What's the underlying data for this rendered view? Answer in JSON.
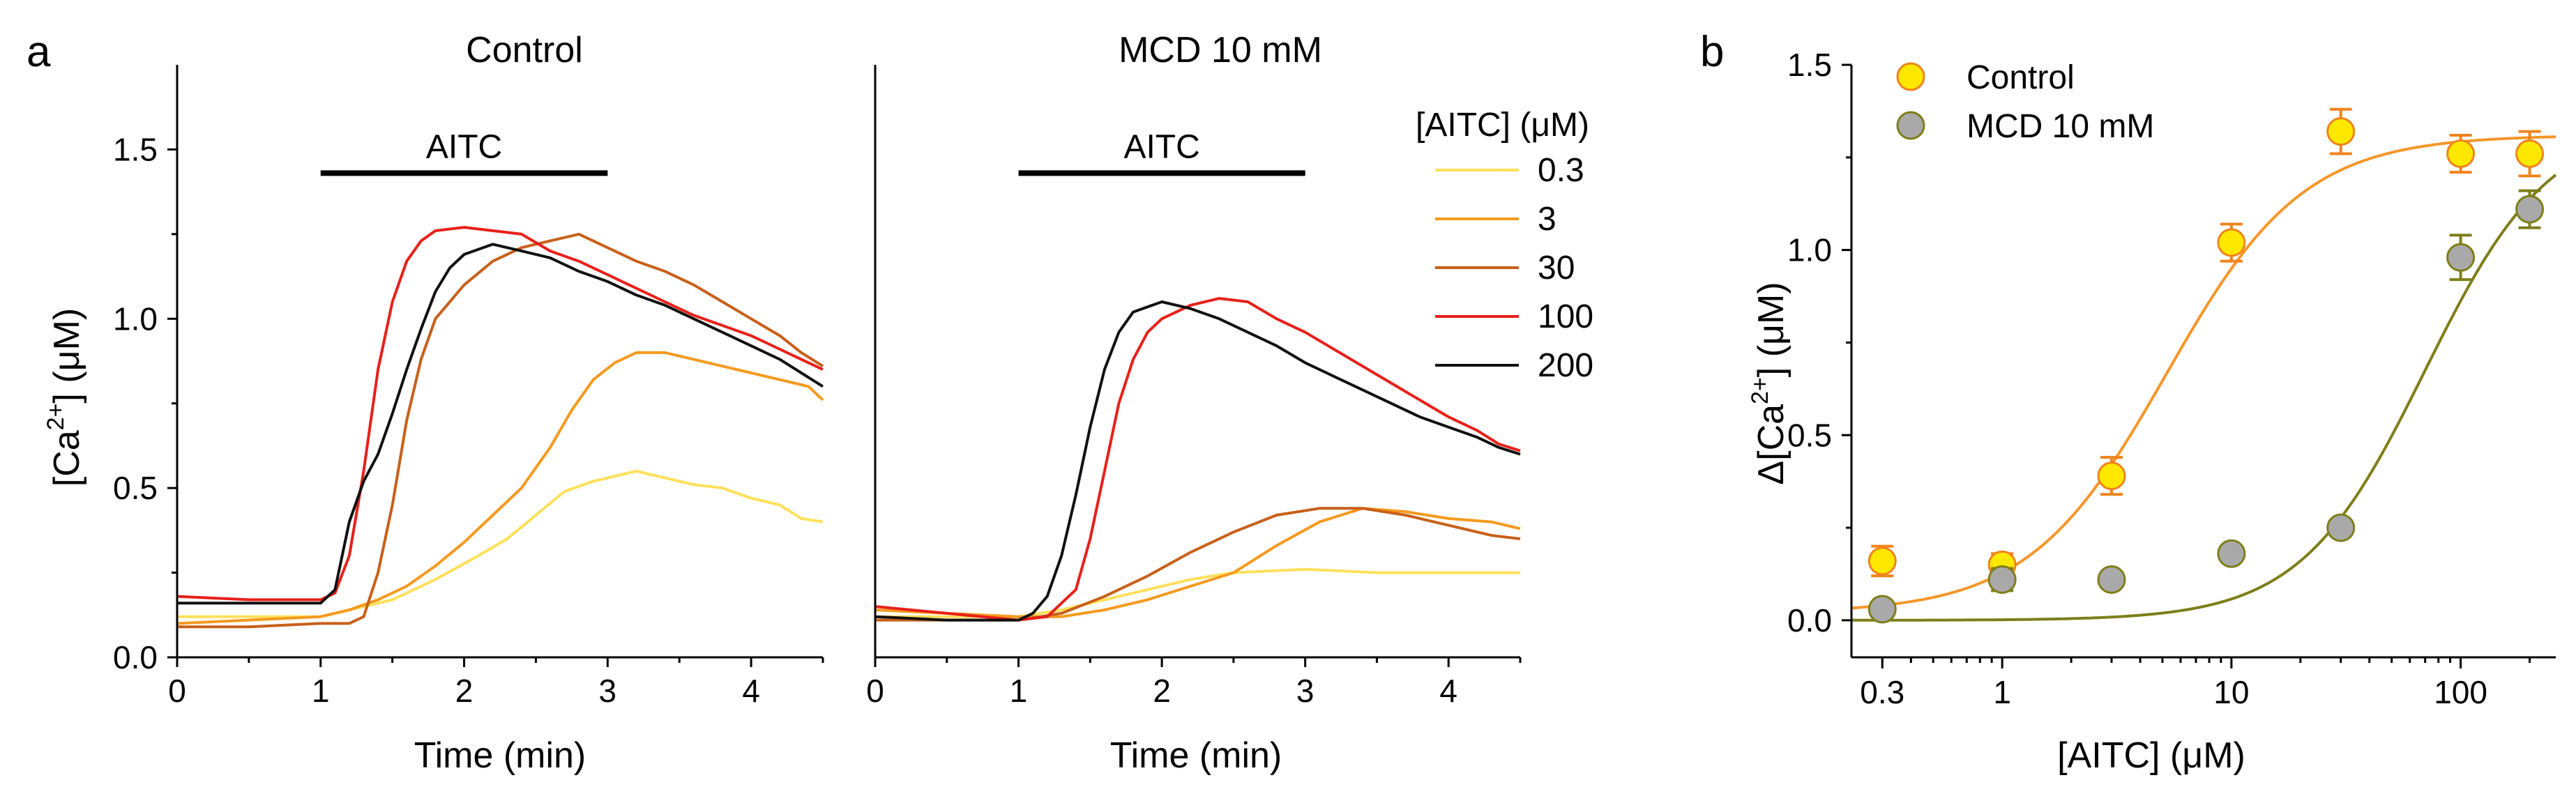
{
  "panel_labels": {
    "a": "a",
    "b": "b"
  },
  "legend_title": "[AITC] (μM)",
  "legend_entries": [
    {
      "label": "0.3",
      "color": "#FFE05A"
    },
    {
      "label": "3",
      "color": "#F59A1E"
    },
    {
      "label": "30",
      "color": "#C8601A"
    },
    {
      "label": "100",
      "color": "#E8201A"
    },
    {
      "label": "200",
      "color": "#111111"
    }
  ],
  "chart_data": [
    {
      "id": "control",
      "type": "line",
      "title": "Control",
      "xlabel": "Time (min)",
      "ylabel_parts": [
        "[Ca",
        "2+",
        "] (μM)"
      ],
      "xlim": [
        0,
        4.5
      ],
      "ylim": [
        0,
        1.75
      ],
      "xticks": [
        0,
        1,
        2,
        3,
        4
      ],
      "yticks": [
        0.0,
        0.5,
        1.0,
        1.5
      ],
      "ytick_labels": [
        "0.0",
        "0.5",
        "1.0",
        "1.5"
      ],
      "annotation": {
        "label": "AITC",
        "start": 1.0,
        "end": 3.0,
        "y": 1.43
      },
      "series": [
        {
          "name": "0.3",
          "color": "#FFE05A",
          "points": [
            [
              0,
              0.12
            ],
            [
              0.5,
              0.12
            ],
            [
              1.0,
              0.12
            ],
            [
              1.2,
              0.14
            ],
            [
              1.5,
              0.17
            ],
            [
              1.8,
              0.23
            ],
            [
              2.1,
              0.3
            ],
            [
              2.3,
              0.35
            ],
            [
              2.5,
              0.42
            ],
            [
              2.7,
              0.49
            ],
            [
              2.9,
              0.52
            ],
            [
              3.1,
              0.54
            ],
            [
              3.2,
              0.55
            ],
            [
              3.4,
              0.53
            ],
            [
              3.6,
              0.51
            ],
            [
              3.8,
              0.5
            ],
            [
              4.0,
              0.47
            ],
            [
              4.2,
              0.45
            ],
            [
              4.35,
              0.41
            ],
            [
              4.5,
              0.4
            ]
          ]
        },
        {
          "name": "3",
          "color": "#F59A1E",
          "points": [
            [
              0,
              0.1
            ],
            [
              0.5,
              0.11
            ],
            [
              1.0,
              0.12
            ],
            [
              1.2,
              0.14
            ],
            [
              1.4,
              0.17
            ],
            [
              1.6,
              0.21
            ],
            [
              1.8,
              0.27
            ],
            [
              2.0,
              0.34
            ],
            [
              2.2,
              0.42
            ],
            [
              2.4,
              0.5
            ],
            [
              2.6,
              0.62
            ],
            [
              2.75,
              0.73
            ],
            [
              2.9,
              0.82
            ],
            [
              3.05,
              0.87
            ],
            [
              3.2,
              0.9
            ],
            [
              3.4,
              0.9
            ],
            [
              3.6,
              0.88
            ],
            [
              3.8,
              0.86
            ],
            [
              4.0,
              0.84
            ],
            [
              4.2,
              0.82
            ],
            [
              4.4,
              0.8
            ],
            [
              4.5,
              0.76
            ]
          ]
        },
        {
          "name": "30",
          "color": "#C8601A",
          "points": [
            [
              0,
              0.09
            ],
            [
              0.5,
              0.09
            ],
            [
              1.0,
              0.1
            ],
            [
              1.2,
              0.1
            ],
            [
              1.3,
              0.12
            ],
            [
              1.4,
              0.25
            ],
            [
              1.5,
              0.45
            ],
            [
              1.6,
              0.7
            ],
            [
              1.7,
              0.88
            ],
            [
              1.8,
              1.0
            ],
            [
              2.0,
              1.1
            ],
            [
              2.2,
              1.17
            ],
            [
              2.4,
              1.21
            ],
            [
              2.6,
              1.23
            ],
            [
              2.8,
              1.25
            ],
            [
              3.0,
              1.21
            ],
            [
              3.2,
              1.17
            ],
            [
              3.4,
              1.14
            ],
            [
              3.6,
              1.1
            ],
            [
              3.8,
              1.05
            ],
            [
              4.0,
              1.0
            ],
            [
              4.2,
              0.95
            ],
            [
              4.35,
              0.9
            ],
            [
              4.5,
              0.86
            ]
          ]
        },
        {
          "name": "100",
          "color": "#E8201A",
          "points": [
            [
              0,
              0.18
            ],
            [
              0.5,
              0.17
            ],
            [
              1.0,
              0.17
            ],
            [
              1.1,
              0.19
            ],
            [
              1.2,
              0.3
            ],
            [
              1.3,
              0.55
            ],
            [
              1.4,
              0.85
            ],
            [
              1.5,
              1.05
            ],
            [
              1.6,
              1.17
            ],
            [
              1.7,
              1.23
            ],
            [
              1.8,
              1.26
            ],
            [
              2.0,
              1.27
            ],
            [
              2.2,
              1.26
            ],
            [
              2.4,
              1.25
            ],
            [
              2.6,
              1.2
            ],
            [
              2.8,
              1.17
            ],
            [
              3.0,
              1.13
            ],
            [
              3.2,
              1.09
            ],
            [
              3.4,
              1.05
            ],
            [
              3.6,
              1.01
            ],
            [
              3.8,
              0.98
            ],
            [
              4.0,
              0.95
            ],
            [
              4.2,
              0.91
            ],
            [
              4.35,
              0.88
            ],
            [
              4.5,
              0.85
            ]
          ]
        },
        {
          "name": "200",
          "color": "#111111",
          "points": [
            [
              0,
              0.16
            ],
            [
              0.5,
              0.16
            ],
            [
              1.0,
              0.16
            ],
            [
              1.1,
              0.2
            ],
            [
              1.2,
              0.4
            ],
            [
              1.3,
              0.52
            ],
            [
              1.4,
              0.6
            ],
            [
              1.5,
              0.72
            ],
            [
              1.6,
              0.85
            ],
            [
              1.7,
              0.97
            ],
            [
              1.8,
              1.08
            ],
            [
              1.9,
              1.15
            ],
            [
              2.0,
              1.19
            ],
            [
              2.2,
              1.22
            ],
            [
              2.4,
              1.2
            ],
            [
              2.6,
              1.18
            ],
            [
              2.8,
              1.14
            ],
            [
              3.0,
              1.11
            ],
            [
              3.2,
              1.07
            ],
            [
              3.4,
              1.04
            ],
            [
              3.6,
              1.0
            ],
            [
              3.8,
              0.96
            ],
            [
              4.0,
              0.92
            ],
            [
              4.2,
              0.88
            ],
            [
              4.35,
              0.84
            ],
            [
              4.5,
              0.8
            ]
          ]
        }
      ]
    },
    {
      "id": "mcd",
      "type": "line",
      "title": "MCD 10 mM",
      "xlabel": "Time (min)",
      "xlim": [
        0,
        4.5
      ],
      "ylim": [
        0,
        1.75
      ],
      "xticks": [
        0,
        1,
        2,
        3,
        4
      ],
      "annotation": {
        "label": "AITC",
        "start": 1.0,
        "end": 3.0,
        "y": 1.43
      },
      "series": [
        {
          "name": "0.3",
          "color": "#FFE05A",
          "points": [
            [
              0,
              0.12
            ],
            [
              0.5,
              0.12
            ],
            [
              1.0,
              0.12
            ],
            [
              1.3,
              0.14
            ],
            [
              1.6,
              0.17
            ],
            [
              1.9,
              0.2
            ],
            [
              2.2,
              0.23
            ],
            [
              2.5,
              0.25
            ],
            [
              3.0,
              0.26
            ],
            [
              3.5,
              0.25
            ],
            [
              4.0,
              0.25
            ],
            [
              4.5,
              0.25
            ]
          ]
        },
        {
          "name": "3",
          "color": "#F59A1E",
          "points": [
            [
              0,
              0.14
            ],
            [
              0.5,
              0.13
            ],
            [
              1.0,
              0.12
            ],
            [
              1.3,
              0.12
            ],
            [
              1.6,
              0.14
            ],
            [
              1.9,
              0.17
            ],
            [
              2.2,
              0.21
            ],
            [
              2.5,
              0.25
            ],
            [
              2.8,
              0.33
            ],
            [
              3.1,
              0.4
            ],
            [
              3.4,
              0.44
            ],
            [
              3.7,
              0.43
            ],
            [
              4.0,
              0.41
            ],
            [
              4.3,
              0.4
            ],
            [
              4.5,
              0.38
            ]
          ]
        },
        {
          "name": "30",
          "color": "#C8601A",
          "points": [
            [
              0,
              0.11
            ],
            [
              0.5,
              0.11
            ],
            [
              1.0,
              0.11
            ],
            [
              1.3,
              0.13
            ],
            [
              1.6,
              0.18
            ],
            [
              1.9,
              0.24
            ],
            [
              2.2,
              0.31
            ],
            [
              2.5,
              0.37
            ],
            [
              2.8,
              0.42
            ],
            [
              3.1,
              0.44
            ],
            [
              3.4,
              0.44
            ],
            [
              3.7,
              0.42
            ],
            [
              4.0,
              0.39
            ],
            [
              4.3,
              0.36
            ],
            [
              4.5,
              0.35
            ]
          ]
        },
        {
          "name": "100",
          "color": "#E8201A",
          "points": [
            [
              0,
              0.15
            ],
            [
              0.5,
              0.13
            ],
            [
              1.0,
              0.11
            ],
            [
              1.2,
              0.12
            ],
            [
              1.4,
              0.2
            ],
            [
              1.5,
              0.35
            ],
            [
              1.6,
              0.55
            ],
            [
              1.7,
              0.75
            ],
            [
              1.8,
              0.88
            ],
            [
              1.9,
              0.96
            ],
            [
              2.0,
              1.0
            ],
            [
              2.2,
              1.04
            ],
            [
              2.4,
              1.06
            ],
            [
              2.6,
              1.05
            ],
            [
              2.8,
              1.0
            ],
            [
              3.0,
              0.96
            ],
            [
              3.2,
              0.91
            ],
            [
              3.4,
              0.86
            ],
            [
              3.6,
              0.81
            ],
            [
              3.8,
              0.76
            ],
            [
              4.0,
              0.71
            ],
            [
              4.2,
              0.67
            ],
            [
              4.35,
              0.63
            ],
            [
              4.5,
              0.61
            ]
          ]
        },
        {
          "name": "200",
          "color": "#111111",
          "points": [
            [
              0,
              0.12
            ],
            [
              0.5,
              0.11
            ],
            [
              1.0,
              0.11
            ],
            [
              1.1,
              0.13
            ],
            [
              1.2,
              0.18
            ],
            [
              1.3,
              0.3
            ],
            [
              1.4,
              0.48
            ],
            [
              1.5,
              0.68
            ],
            [
              1.6,
              0.85
            ],
            [
              1.7,
              0.96
            ],
            [
              1.8,
              1.02
            ],
            [
              2.0,
              1.05
            ],
            [
              2.2,
              1.03
            ],
            [
              2.4,
              1.0
            ],
            [
              2.6,
              0.96
            ],
            [
              2.8,
              0.92
            ],
            [
              3.0,
              0.87
            ],
            [
              3.2,
              0.83
            ],
            [
              3.4,
              0.79
            ],
            [
              3.6,
              0.75
            ],
            [
              3.8,
              0.71
            ],
            [
              4.0,
              0.68
            ],
            [
              4.2,
              0.65
            ],
            [
              4.35,
              0.62
            ],
            [
              4.5,
              0.6
            ]
          ]
        }
      ]
    },
    {
      "id": "dose_response",
      "type": "scatter",
      "xscale": "log",
      "xlabel": "[AITC] (μM)",
      "ylabel_parts": [
        "Δ[Ca",
        "2+",
        "] (μM)"
      ],
      "xlim": [
        0.22,
        260
      ],
      "ylim": [
        -0.1,
        1.5
      ],
      "xticks": [
        0.3,
        1,
        10,
        100
      ],
      "xtick_labels": [
        "0.3",
        "1",
        "10",
        "100"
      ],
      "yticks": [
        0.0,
        0.5,
        1.0,
        1.5
      ],
      "ytick_labels": [
        "0.0",
        "0.5",
        "1.0",
        "1.5"
      ],
      "series": [
        {
          "name": "Control",
          "marker_color": "#FFE800",
          "edge_color": "#F0841C",
          "fit_color": "#F5962A",
          "x": [
            0.3,
            1,
            3,
            10,
            30,
            100,
            200
          ],
          "y": [
            0.16,
            0.15,
            0.39,
            1.02,
            1.32,
            1.26,
            1.26
          ],
          "err": [
            0.04,
            0.03,
            0.05,
            0.05,
            0.06,
            0.05,
            0.06
          ],
          "fit": {
            "bottom": 0.02,
            "top": 1.31,
            "ec50": 5.2,
            "hill": 1.45
          }
        },
        {
          "name": "MCD 10 mM",
          "marker_color": "#A9A9A9",
          "edge_color": "#7E7E1A",
          "fit_color": "#7E7E1A",
          "x": [
            0.3,
            1,
            3,
            10,
            30,
            100,
            200
          ],
          "y": [
            0.03,
            0.11,
            0.11,
            0.18,
            0.25,
            0.98,
            1.11
          ],
          "err": [
            0.02,
            0.03,
            0.02,
            0.02,
            0.02,
            0.06,
            0.05
          ],
          "fit": {
            "bottom": 0.0,
            "top": 1.35,
            "ec50": 70,
            "hill": 1.6
          }
        }
      ]
    }
  ]
}
